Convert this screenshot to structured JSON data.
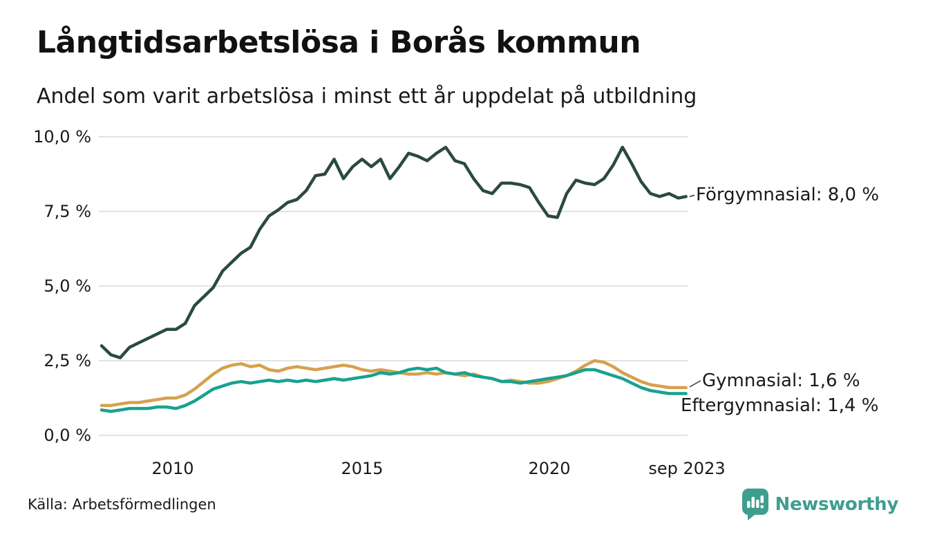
{
  "header": {
    "title": "Långtidsarbetslösa i Borås kommun",
    "subtitle": "Andel som varit arbetslösa i minst ett år uppdelat på utbildning"
  },
  "footer": {
    "source": "Källa: Arbetsförmedlingen",
    "brand": "Newsworthy",
    "brand_icon": "newsworthy-speech-bubble-bar-chart-icon",
    "brand_color": "#3e9e8e"
  },
  "colors": {
    "grid": "#e3e3e3",
    "text": "#1a1a1a",
    "connector": "#555555"
  },
  "chart_data": {
    "type": "line",
    "title": "Långtidsarbetslösa i Borås kommun",
    "subtitle": "Andel som varit arbetslösa i minst ett år uppdelat på utbildning",
    "xlabel": "",
    "ylabel": "",
    "grid": "horizontal",
    "legend": "end-labels",
    "xlim": [
      2008,
      2023.75
    ],
    "ylim": [
      0,
      10
    ],
    "x_unit": "decimal-year (monthly series shown, quarterly sampled)",
    "x": [
      2008,
      2008.25,
      2008.5,
      2008.75,
      2009,
      2009.25,
      2009.5,
      2009.75,
      2010,
      2010.25,
      2010.5,
      2010.75,
      2011,
      2011.25,
      2011.5,
      2011.75,
      2012,
      2012.25,
      2012.5,
      2012.75,
      2013,
      2013.25,
      2013.5,
      2013.75,
      2014,
      2014.25,
      2014.5,
      2014.75,
      2015,
      2015.25,
      2015.5,
      2015.75,
      2016,
      2016.25,
      2016.5,
      2016.75,
      2017,
      2017.25,
      2017.5,
      2017.75,
      2018,
      2018.25,
      2018.5,
      2018.75,
      2019,
      2019.25,
      2019.5,
      2019.75,
      2020,
      2020.25,
      2020.5,
      2020.75,
      2021,
      2021.25,
      2021.5,
      2021.75,
      2022,
      2022.25,
      2022.5,
      2022.75,
      2023,
      2023.25,
      2023.5,
      2023.708
    ],
    "x_ticks": [
      {
        "value": 2010,
        "label": "2010"
      },
      {
        "value": 2015,
        "label": "2015"
      },
      {
        "value": 2020,
        "label": "2020"
      },
      {
        "value": 2023.708,
        "label": "sep 2023"
      }
    ],
    "y_ticks": [
      {
        "value": 10,
        "label": "10,0 %"
      },
      {
        "value": 7.5,
        "label": "7,5 %"
      },
      {
        "value": 5,
        "label": "5,0 %"
      },
      {
        "value": 2.5,
        "label": "2,5 %"
      },
      {
        "value": 0,
        "label": "0,0 %"
      }
    ],
    "series": [
      {
        "name": "Förgymnasial",
        "label": "Förgymnasial: 8,0 %",
        "end_value": "8,0 %",
        "color": "#2a4a40",
        "values": [
          3.0,
          2.7,
          2.6,
          2.95,
          3.1,
          3.25,
          3.4,
          3.55,
          3.55,
          3.75,
          4.35,
          4.65,
          4.95,
          5.5,
          5.8,
          6.1,
          6.3,
          6.9,
          7.35,
          7.55,
          7.8,
          7.9,
          8.2,
          8.7,
          8.75,
          9.25,
          8.6,
          9.0,
          9.25,
          9.0,
          9.25,
          8.6,
          9.0,
          9.45,
          9.35,
          9.2,
          9.45,
          9.65,
          9.2,
          9.1,
          8.6,
          8.2,
          8.1,
          8.45,
          8.45,
          8.4,
          8.3,
          7.8,
          7.35,
          7.3,
          8.1,
          8.55,
          8.45,
          8.4,
          8.6,
          9.05,
          9.65,
          9.1,
          8.5,
          8.1,
          8.0,
          8.1,
          7.95,
          8.0
        ]
      },
      {
        "name": "Gymnasial",
        "label": "Gymnasial: 1,6 %",
        "end_value": "1,6 %",
        "color": "#d5a14d",
        "values": [
          1.0,
          1.0,
          1.05,
          1.1,
          1.1,
          1.15,
          1.2,
          1.25,
          1.25,
          1.35,
          1.55,
          1.8,
          2.05,
          2.25,
          2.35,
          2.4,
          2.3,
          2.35,
          2.2,
          2.15,
          2.25,
          2.3,
          2.25,
          2.2,
          2.25,
          2.3,
          2.35,
          2.3,
          2.2,
          2.15,
          2.2,
          2.15,
          2.1,
          2.05,
          2.05,
          2.1,
          2.05,
          2.1,
          2.05,
          2.0,
          2.05,
          1.95,
          1.9,
          1.8,
          1.85,
          1.8,
          1.75,
          1.75,
          1.8,
          1.9,
          2.0,
          2.15,
          2.35,
          2.5,
          2.45,
          2.3,
          2.1,
          1.95,
          1.8,
          1.7,
          1.65,
          1.6,
          1.6,
          1.6
        ]
      },
      {
        "name": "Eftergymnasial",
        "label": "Eftergymnasial: 1,4 %",
        "end_value": "1,4 %",
        "color": "#18a28e",
        "values": [
          0.85,
          0.8,
          0.85,
          0.9,
          0.9,
          0.9,
          0.95,
          0.95,
          0.9,
          1.0,
          1.15,
          1.35,
          1.55,
          1.65,
          1.75,
          1.8,
          1.75,
          1.8,
          1.85,
          1.8,
          1.85,
          1.8,
          1.85,
          1.8,
          1.85,
          1.9,
          1.85,
          1.9,
          1.95,
          2.0,
          2.1,
          2.05,
          2.1,
          2.2,
          2.25,
          2.2,
          2.25,
          2.1,
          2.05,
          2.1,
          2.0,
          1.95,
          1.9,
          1.8,
          1.8,
          1.75,
          1.8,
          1.85,
          1.9,
          1.95,
          2.0,
          2.1,
          2.2,
          2.2,
          2.1,
          2.0,
          1.9,
          1.75,
          1.6,
          1.5,
          1.45,
          1.4,
          1.4,
          1.4
        ]
      }
    ]
  }
}
